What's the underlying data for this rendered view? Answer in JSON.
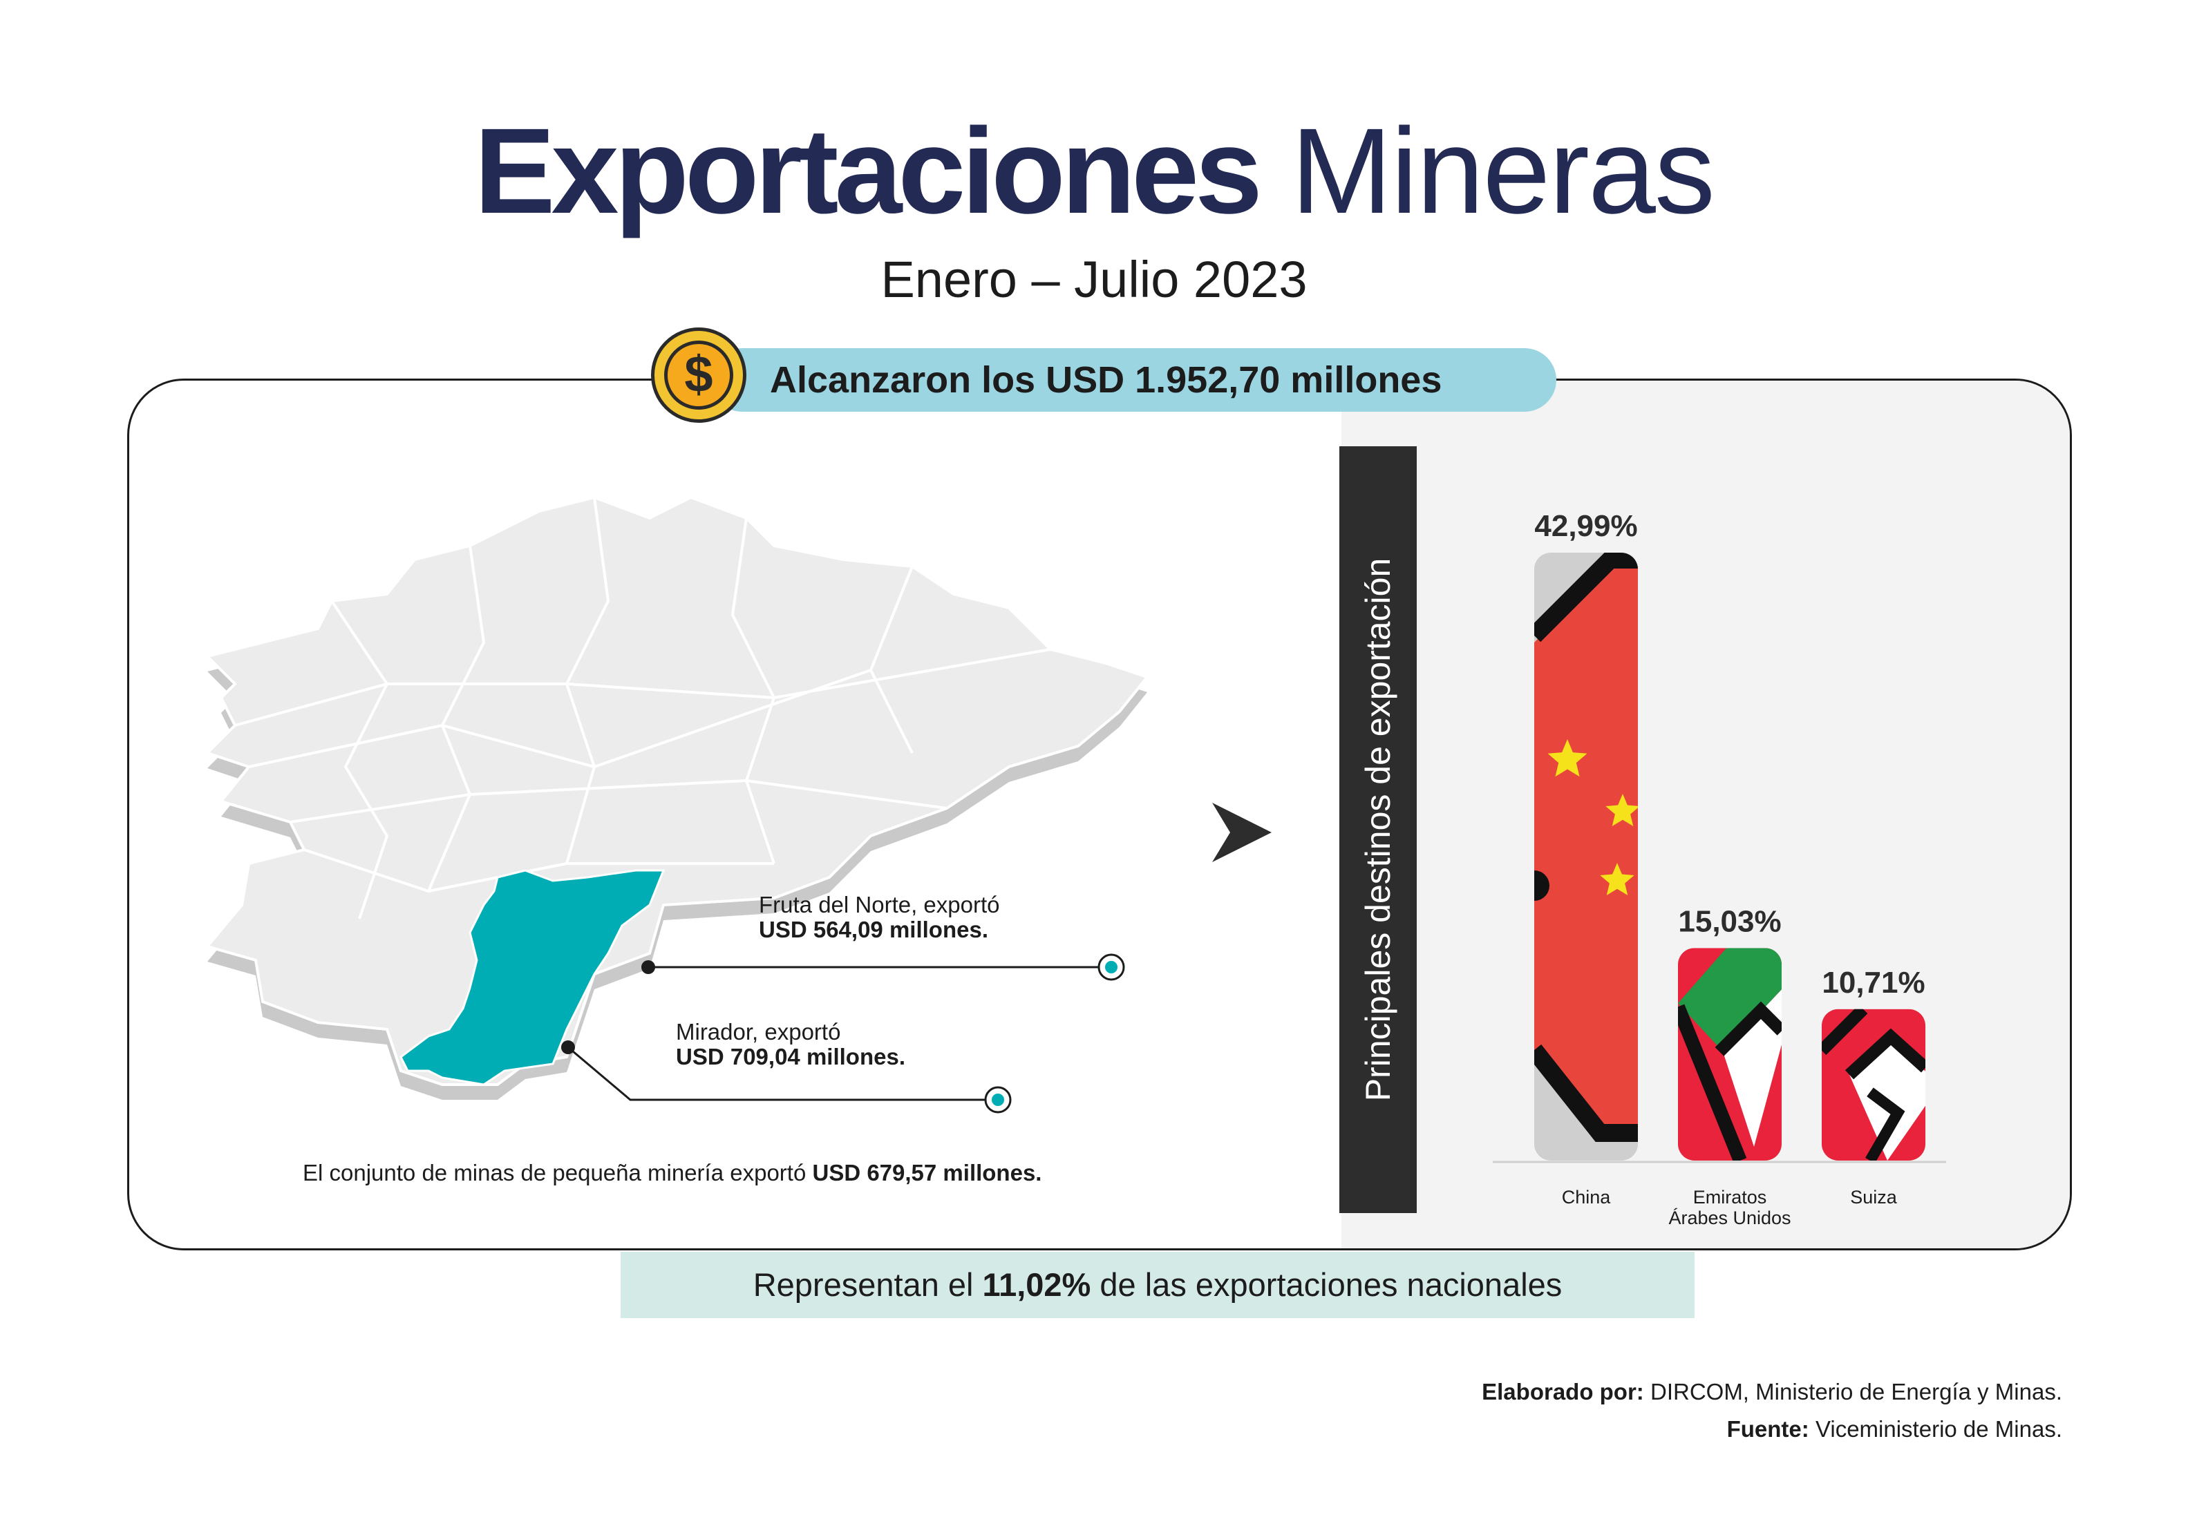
{
  "header": {
    "title_bold": "Exportaciones",
    "title_light": "Mineras",
    "subtitle": "Enero – Julio 2023"
  },
  "total": {
    "text": "Alcanzaron los USD 1.952,70 millones",
    "icon": "dollar-coin-icon",
    "icon_glyph": "$"
  },
  "map_notes": {
    "fruta": {
      "line1": "Fruta del Norte, exportó",
      "line2": "USD 564,09 millones."
    },
    "mirador": {
      "line1": "Mirador, exportó",
      "line2": "USD 709,04 millones."
    },
    "small_mining": {
      "prefix": "El conjunto de minas de pequeña minería exportó ",
      "amount": "USD 679,57 millones."
    }
  },
  "side_label": "Principales destinos de exportación",
  "chart_data": {
    "type": "bar",
    "categories": [
      "China",
      "Emiratos Árabes Unidos",
      "Suiza"
    ],
    "category_lines": [
      [
        "China"
      ],
      [
        "Emiratos",
        "Árabes Unidos"
      ],
      [
        "Suiza"
      ]
    ],
    "values": [
      42.99,
      15.03,
      10.71
    ],
    "value_labels": [
      "42,99%",
      "15,03%",
      "10,71%"
    ],
    "unit": "%",
    "bar_fill": "country flags"
  },
  "footer": {
    "represent_prefix": "Representan el ",
    "represent_value": "11,02%",
    "represent_suffix": " de las exportaciones nacionales",
    "credit_label": "Elaborado por:",
    "credit_text": " DIRCOM, Ministerio de Energía y Minas.",
    "source_label": "Fuente:",
    "source_text": " Viceministerio de Minas."
  },
  "colors": {
    "title": "#232a54",
    "pill": "#9cd5e2",
    "map_highlight": "#00adb5",
    "map_base": "#ececec",
    "represent_bg": "#d4eae7",
    "china_red": "#e8453c",
    "uae_green": "#239a48",
    "red": "#e8233b",
    "yellow": "#f6e21b"
  }
}
